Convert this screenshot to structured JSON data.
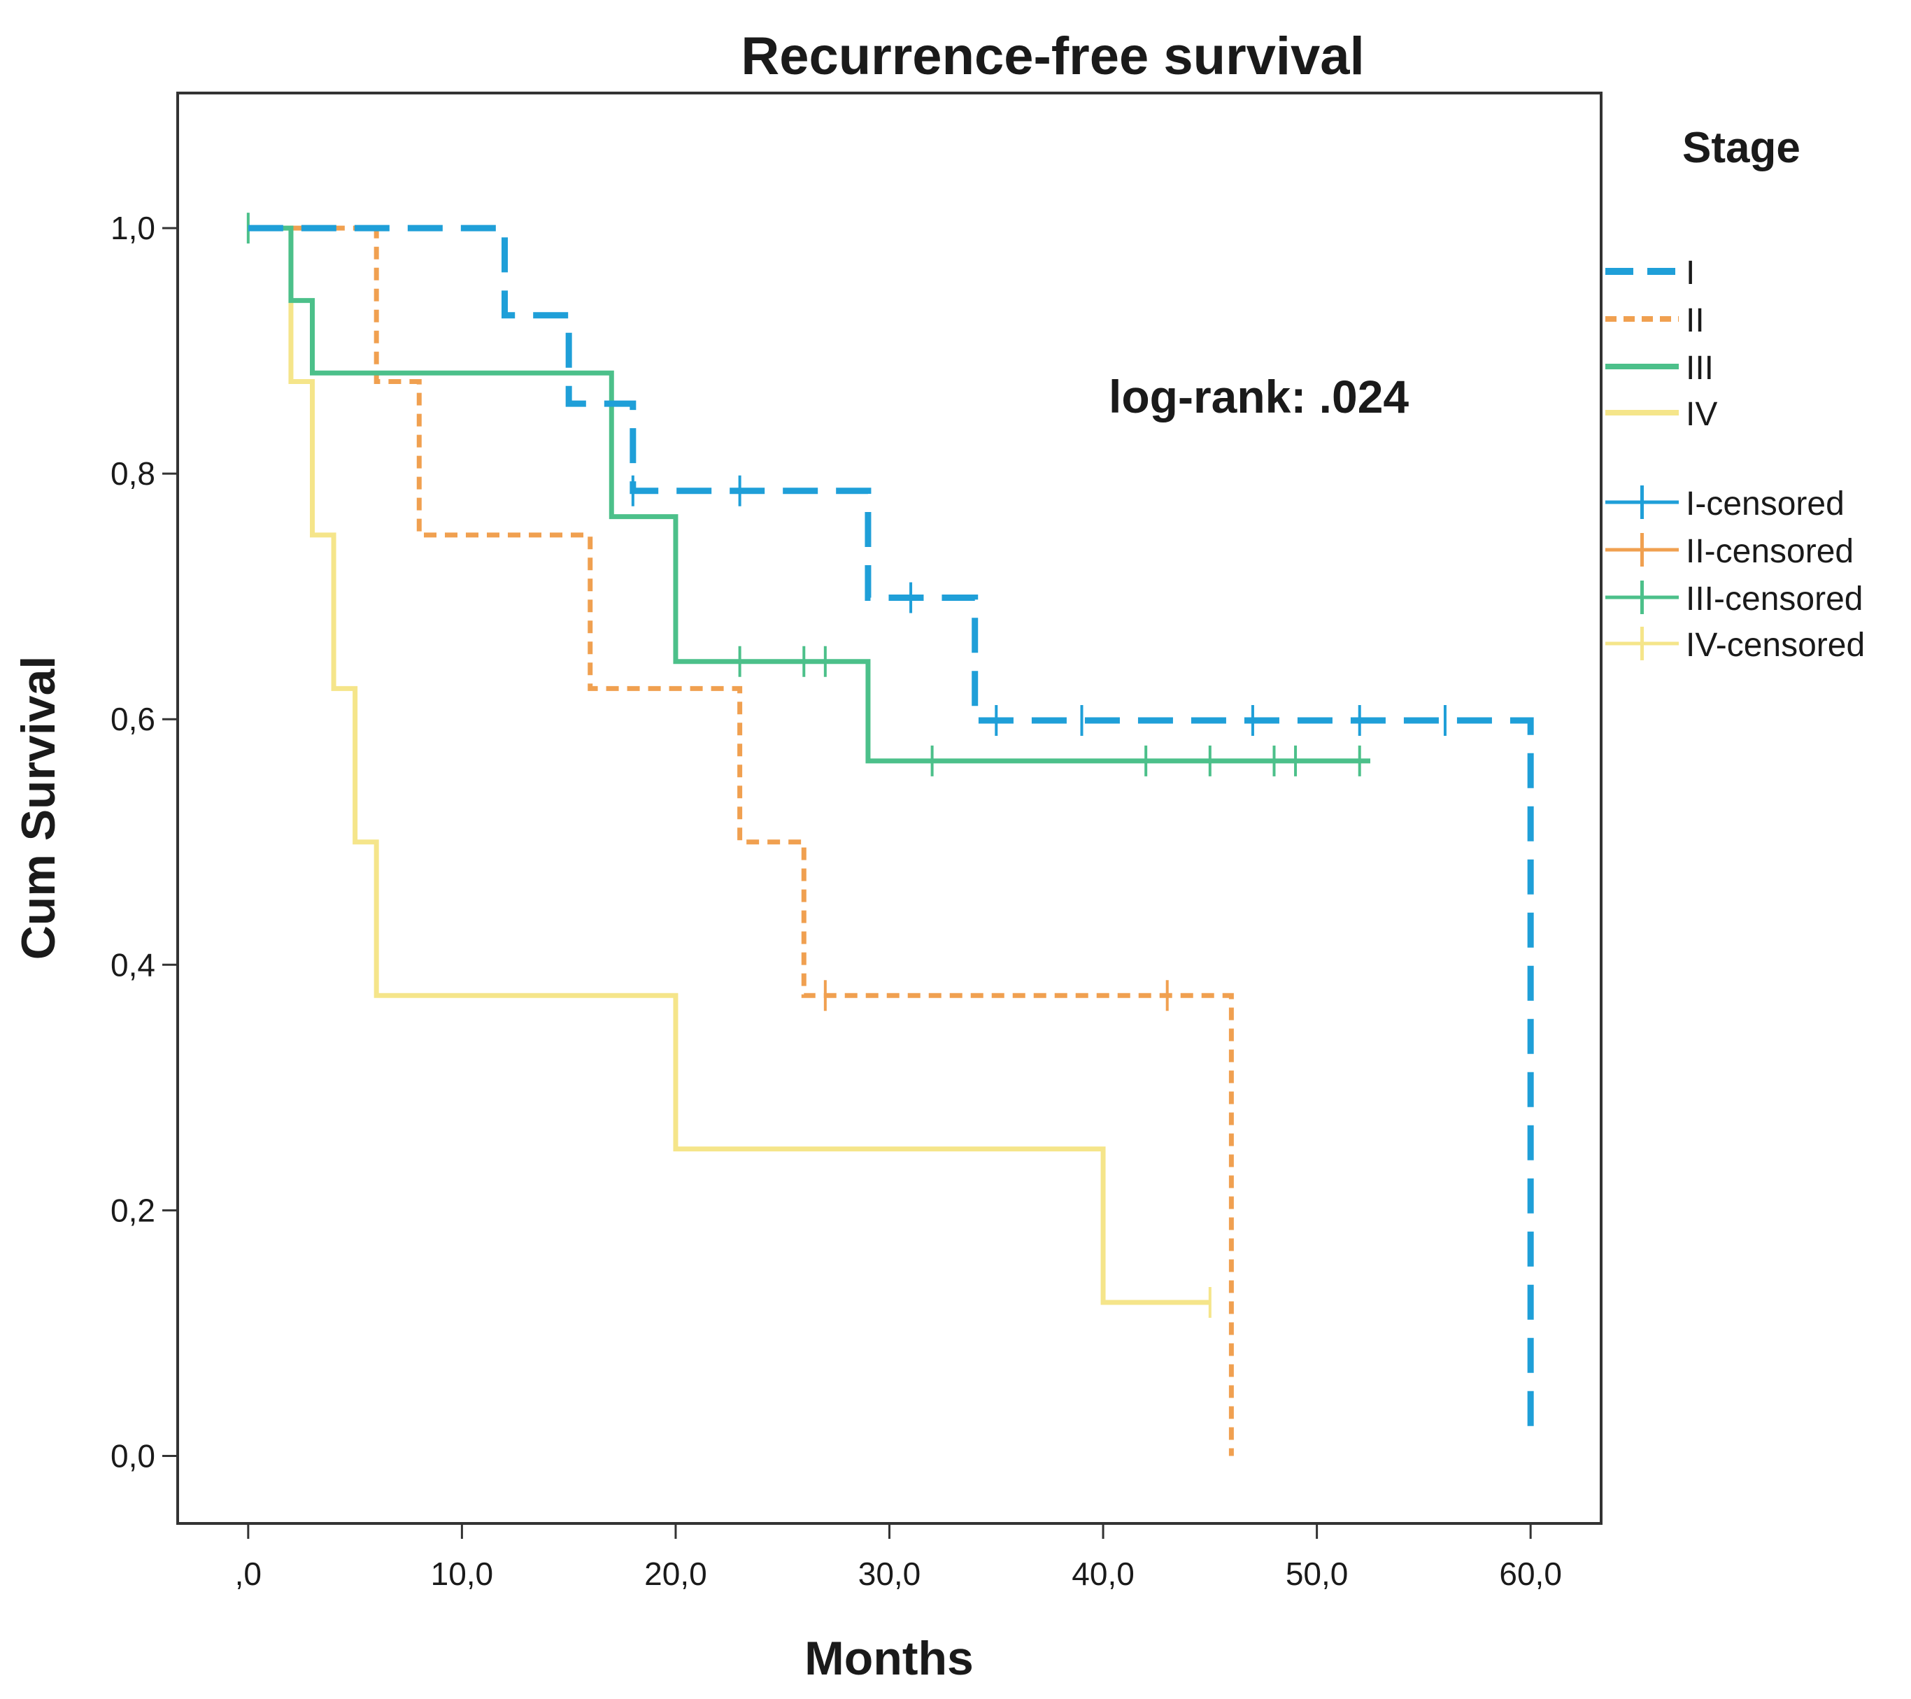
{
  "chart_data": {
    "type": "line",
    "subtype": "kaplan-meier step",
    "title": "Recurrence-free survival",
    "xlabel": "Months",
    "ylabel": "Cum Survival",
    "xlim": [
      -3.3,
      63.3
    ],
    "ylim": [
      -0.055,
      1.11
    ],
    "x_ticks": [
      0,
      10,
      20,
      30,
      40,
      50,
      60
    ],
    "x_tick_labels": [
      ",0",
      "10,0",
      "20,0",
      "30,0",
      "40,0",
      "50,0",
      "60,0"
    ],
    "y_ticks": [
      0,
      0.2,
      0.4,
      0.6,
      0.8,
      1.0
    ],
    "y_tick_labels": [
      "0,0",
      "0,2",
      "0,4",
      "0,6",
      "0,8",
      "1,0"
    ],
    "grid": false,
    "legend_title": "Stage",
    "legend_position": "right",
    "annotation": "log-rank: .024",
    "series": [
      {
        "name": "I",
        "censored_name": "I-censored",
        "color": "#1f9fd8",
        "dash": "dashed",
        "steps": [
          [
            0,
            1.0
          ],
          [
            12,
            0.929
          ],
          [
            15,
            0.857
          ],
          [
            18,
            0.786
          ],
          [
            29,
            0.699
          ],
          [
            34,
            0.599
          ],
          [
            60,
            0.02
          ]
        ],
        "end_x": 60,
        "censored": [
          [
            18,
            0.786
          ],
          [
            23,
            0.786
          ],
          [
            31,
            0.699
          ],
          [
            35,
            0.599
          ],
          [
            39,
            0.599
          ],
          [
            47,
            0.599
          ],
          [
            52,
            0.599
          ],
          [
            56,
            0.599
          ]
        ]
      },
      {
        "name": "II",
        "censored_name": "II-censored",
        "color": "#f0a050",
        "dash": "dotted",
        "steps": [
          [
            0,
            1.0
          ],
          [
            6,
            0.875
          ],
          [
            8,
            0.75
          ],
          [
            16,
            0.625
          ],
          [
            23,
            0.5
          ],
          [
            26,
            0.375
          ],
          [
            46,
            0.0
          ]
        ],
        "end_x": 46,
        "censored": [
          [
            27,
            0.375
          ],
          [
            43,
            0.375
          ]
        ]
      },
      {
        "name": "III",
        "censored_name": "III-censored",
        "color": "#4cc08a",
        "dash": "solid",
        "steps": [
          [
            0,
            1.0
          ],
          [
            2,
            0.941
          ],
          [
            3,
            0.882
          ],
          [
            17,
            0.765
          ],
          [
            20,
            0.647
          ],
          [
            29,
            0.566
          ]
        ],
        "end_x": 52.5,
        "censored": [
          [
            0,
            1.0
          ],
          [
            23,
            0.647
          ],
          [
            26,
            0.647
          ],
          [
            27,
            0.647
          ],
          [
            32,
            0.566
          ],
          [
            42,
            0.566
          ],
          [
            45,
            0.566
          ],
          [
            48,
            0.566
          ],
          [
            49,
            0.566
          ],
          [
            52,
            0.566
          ]
        ]
      },
      {
        "name": "IV",
        "censored_name": "IV-censored",
        "color": "#f5e58a",
        "dash": "solid",
        "steps": [
          [
            0,
            1.0
          ],
          [
            2,
            0.875
          ],
          [
            3,
            0.75
          ],
          [
            4,
            0.625
          ],
          [
            5,
            0.5
          ],
          [
            6,
            0.375
          ],
          [
            20,
            0.25
          ],
          [
            40,
            0.125
          ]
        ],
        "end_x": 45,
        "censored": [
          [
            45,
            0.125
          ]
        ]
      }
    ]
  }
}
